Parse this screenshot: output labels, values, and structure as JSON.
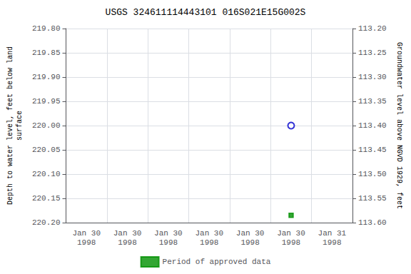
{
  "chart_data": {
    "type": "scatter",
    "title": "USGS 324611114443101 016S021E15G002S",
    "categories": [
      "Jan 30\n1998",
      "Jan 30\n1998",
      "Jan 30\n1998",
      "Jan 30\n1998",
      "Jan 30\n1998",
      "Jan 30\n1998",
      "Jan 31\n1998"
    ],
    "y_label": "Depth to water level, feet below land\nsurface",
    "y2_label": "Groundwater level above NGVD 1929, feet",
    "ylim": [
      220.2,
      219.8
    ],
    "yticks": [
      {
        "value": 219.8,
        "label": "219.80"
      },
      219.85,
      {
        "value": 219.9,
        "label": "219.90"
      },
      219.95,
      {
        "value": 220,
        "label": "220.00"
      },
      220.05,
      {
        "value": 220.1,
        "label": "220.10"
      },
      220.15,
      {
        "value": 220.2,
        "label": "220.20"
      }
    ],
    "y2lim": [
      113.6,
      113.2
    ],
    "y2ticks": [
      {
        "value": 113.6,
        "label": "113.60"
      },
      113.55,
      {
        "value": 113.5,
        "label": "113.50"
      },
      113.45,
      {
        "value": 113.4,
        "label": "113.40"
      },
      113.35,
      {
        "value": 113.3,
        "label": "113.30"
      },
      113.25,
      {
        "value": 113.2,
        "label": "113.20"
      }
    ],
    "grid": true,
    "legend": "bottom",
    "series": [
      {
        "color": "#0000cc",
        "marker": "circle",
        "values": [
          null,
          null,
          null,
          null,
          null,
          220.0,
          null
        ]
      },
      {
        "name": "Period of approved data",
        "color": "#009000",
        "marker": "square",
        "values": [
          null,
          null,
          null,
          null,
          null,
          220.185,
          null
        ]
      }
    ]
  }
}
